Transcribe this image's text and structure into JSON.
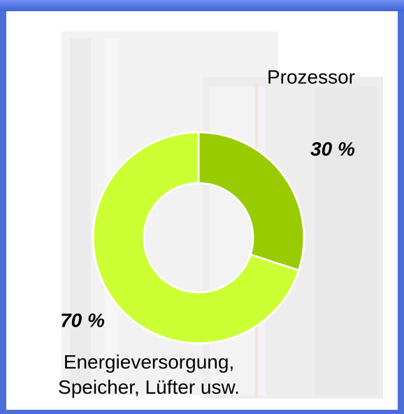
{
  "chart_data": {
    "type": "donut",
    "categories": [
      "Prozessor",
      "Energieversorgung, Speicher, Lüfter usw."
    ],
    "values": [
      30,
      70
    ],
    "value_labels": [
      "30 %",
      "70 %"
    ],
    "colors": [
      "#99cc00",
      "#ccff33"
    ]
  }
}
